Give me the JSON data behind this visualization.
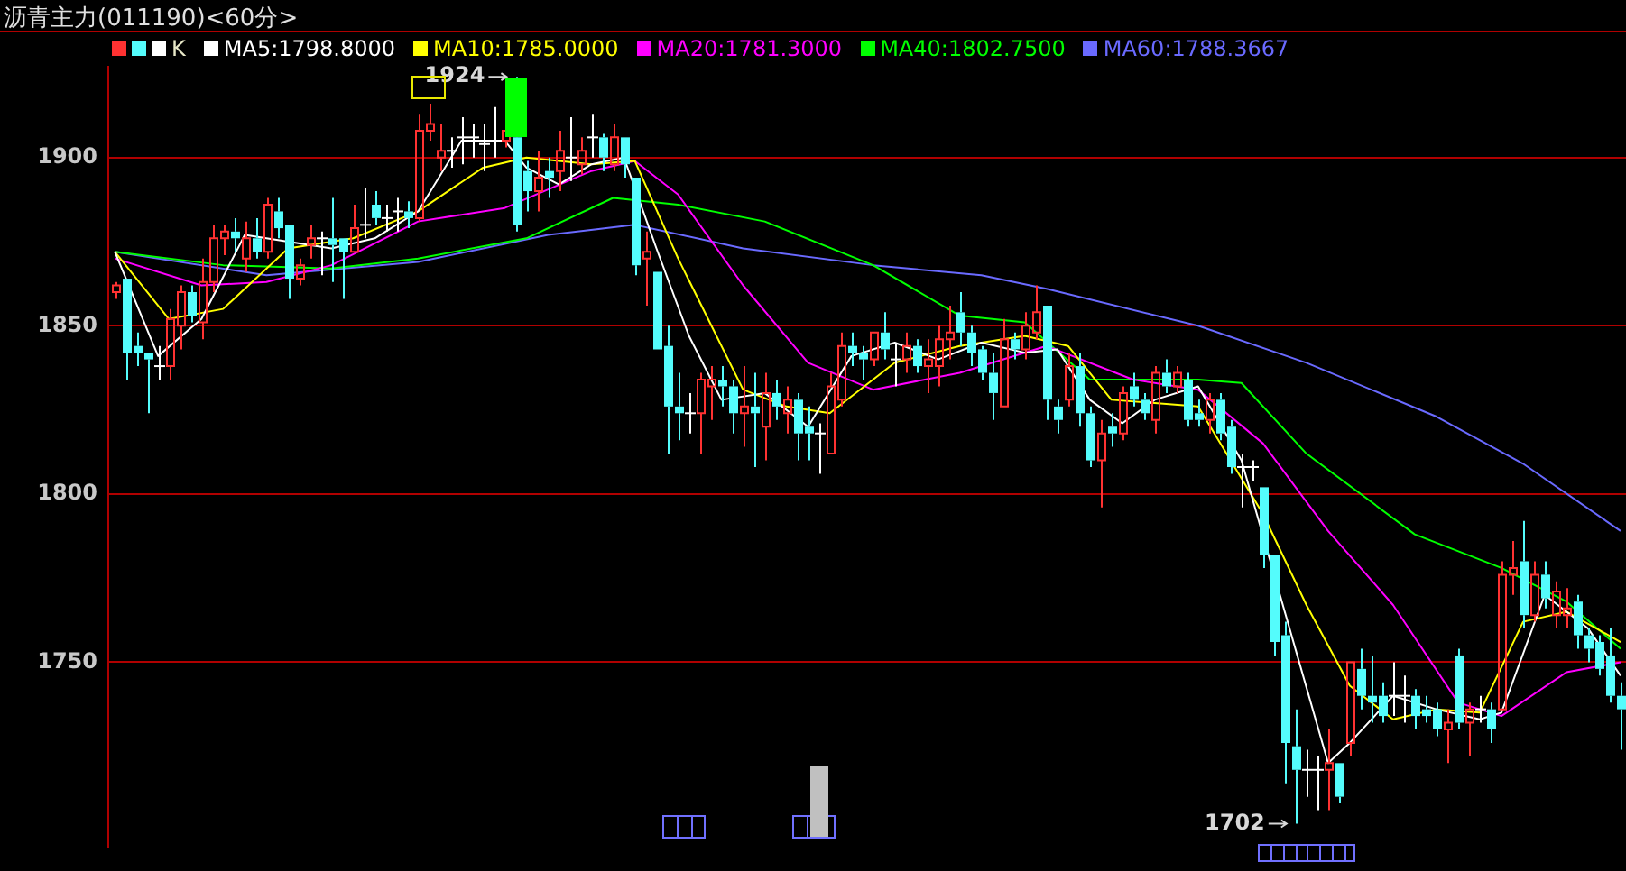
{
  "chart_data": {
    "type": "candlestick",
    "title": "沥青主力(011190)<60分>",
    "categories": [
      null,
      null,
      null,
      null,
      null,
      null,
      null,
      null,
      null,
      null,
      null,
      null,
      null,
      null,
      null,
      null,
      null,
      null,
      null,
      null,
      null,
      null,
      null,
      null,
      null,
      null,
      null,
      null,
      null,
      null,
      null,
      null,
      null,
      null,
      null,
      null,
      null,
      null,
      null,
      null,
      null,
      null,
      null,
      null,
      null,
      null,
      null,
      null,
      null,
      null,
      null,
      null,
      null,
      null,
      null,
      null,
      null,
      null,
      null,
      null,
      null,
      null,
      null,
      null,
      null,
      null,
      null,
      null,
      null,
      null,
      null,
      null,
      null,
      null,
      null,
      null,
      null,
      null,
      null,
      null,
      null,
      null,
      null,
      null,
      null,
      null,
      null,
      null,
      null,
      null,
      null,
      null,
      null,
      null,
      null,
      null,
      null,
      null,
      null,
      null,
      null,
      null,
      null,
      null,
      null,
      null,
      null,
      null,
      null,
      null,
      null,
      null,
      null,
      null,
      null,
      null,
      null,
      null,
      null,
      null,
      null,
      null,
      null,
      null,
      null,
      null,
      null,
      null,
      null,
      null,
      null,
      null,
      null,
      null,
      null,
      null,
      null,
      null,
      null,
      null
    ],
    "series": [
      {
        "name": "K",
        "color": "#e8e8c8",
        "ohlc": [
          [
            1860,
            1863,
            1858,
            1862
          ],
          [
            1864,
            1864,
            1834,
            1842
          ],
          [
            1844,
            1848,
            1838,
            1842
          ],
          [
            1842,
            1842,
            1824,
            1840
          ],
          [
            1838,
            1844,
            1834,
            1838
          ],
          [
            1838,
            1855,
            1834,
            1852
          ],
          [
            1850,
            1862,
            1843,
            1860
          ],
          [
            1860,
            1862,
            1851,
            1853
          ],
          [
            1851,
            1870,
            1846,
            1863
          ],
          [
            1863,
            1880,
            1860,
            1876
          ],
          [
            1876,
            1880,
            1871,
            1878
          ],
          [
            1878,
            1882,
            1872,
            1876
          ],
          [
            1870,
            1881,
            1866,
            1876
          ],
          [
            1876,
            1882,
            1870,
            1872
          ],
          [
            1872,
            1888,
            1870,
            1886
          ],
          [
            1884,
            1888,
            1876,
            1879
          ],
          [
            1880,
            1880,
            1858,
            1864
          ],
          [
            1864,
            1870,
            1862,
            1868
          ],
          [
            1874,
            1880,
            1870,
            1876
          ],
          [
            1876,
            1878,
            1865,
            1876
          ],
          [
            1876,
            1888,
            1863,
            1874
          ],
          [
            1876,
            1876,
            1858,
            1872
          ],
          [
            1872,
            1886,
            1872,
            1879
          ],
          [
            1880,
            1891,
            1876,
            1880
          ],
          [
            1886,
            1890,
            1880,
            1882
          ],
          [
            1882,
            1886,
            1878,
            1882
          ],
          [
            1884,
            1888,
            1878,
            1884
          ],
          [
            1884,
            1887,
            1879,
            1882
          ],
          [
            1882,
            1913,
            1881,
            1908
          ],
          [
            1908,
            1916,
            1905,
            1910
          ],
          [
            1900,
            1910,
            1896,
            1902
          ],
          [
            1902,
            1906,
            1897,
            1902
          ],
          [
            1906,
            1912,
            1898,
            1906
          ],
          [
            1906,
            1910,
            1900,
            1906
          ],
          [
            1904,
            1910,
            1896,
            1904
          ],
          [
            1905,
            1915,
            1900,
            1905
          ],
          [
            1905,
            1910,
            1903,
            1908
          ],
          [
            1906,
            1924,
            1878,
            1880
          ],
          [
            1896,
            1899,
            1884,
            1890
          ],
          [
            1890,
            1902,
            1884,
            1894
          ],
          [
            1896,
            1900,
            1888,
            1894
          ],
          [
            1896,
            1908,
            1890,
            1902
          ],
          [
            1900,
            1912,
            1893,
            1900
          ],
          [
            1898,
            1906,
            1895,
            1902
          ],
          [
            1906,
            1913,
            1900,
            1906
          ],
          [
            1906,
            1907,
            1896,
            1900
          ],
          [
            1898,
            1910,
            1896,
            1906
          ],
          [
            1906,
            1906,
            1894,
            1898
          ],
          [
            1894,
            1894,
            1865,
            1868
          ],
          [
            1870,
            1878,
            1856,
            1872
          ],
          [
            1866,
            1866,
            1843,
            1843
          ],
          [
            1844,
            1850,
            1812,
            1826
          ],
          [
            1826,
            1836,
            1816,
            1824
          ],
          [
            1824,
            1830,
            1818,
            1824
          ],
          [
            1824,
            1836,
            1812,
            1834
          ],
          [
            1832,
            1838,
            1822,
            1834
          ],
          [
            1834,
            1838,
            1826,
            1832
          ],
          [
            1832,
            1834,
            1818,
            1824
          ],
          [
            1824,
            1838,
            1814,
            1826
          ],
          [
            1826,
            1836,
            1808,
            1824
          ],
          [
            1820,
            1836,
            1810,
            1830
          ],
          [
            1830,
            1834,
            1822,
            1826
          ],
          [
            1824,
            1832,
            1818,
            1828
          ],
          [
            1828,
            1830,
            1810,
            1818
          ],
          [
            1820,
            1826,
            1810,
            1818
          ],
          [
            1818,
            1821,
            1806,
            1818
          ],
          [
            1812,
            1836,
            1812,
            1832
          ],
          [
            1828,
            1848,
            1826,
            1844
          ],
          [
            1844,
            1848,
            1838,
            1842
          ],
          [
            1842,
            1844,
            1834,
            1840
          ],
          [
            1840,
            1848,
            1838,
            1848
          ],
          [
            1848,
            1854,
            1840,
            1843
          ],
          [
            1840,
            1845,
            1832,
            1840
          ],
          [
            1840,
            1848,
            1836,
            1844
          ],
          [
            1844,
            1846,
            1836,
            1838
          ],
          [
            1838,
            1846,
            1830,
            1840
          ],
          [
            1838,
            1850,
            1832,
            1846
          ],
          [
            1846,
            1856,
            1840,
            1848
          ],
          [
            1854,
            1860,
            1844,
            1848
          ],
          [
            1848,
            1850,
            1838,
            1842
          ],
          [
            1843,
            1844,
            1834,
            1836
          ],
          [
            1836,
            1842,
            1822,
            1830
          ],
          [
            1826,
            1852,
            1826,
            1846
          ],
          [
            1846,
            1848,
            1840,
            1843
          ],
          [
            1843,
            1854,
            1840,
            1850
          ],
          [
            1848,
            1862,
            1846,
            1854
          ],
          [
            1856,
            1856,
            1822,
            1828
          ],
          [
            1826,
            1828,
            1818,
            1822
          ],
          [
            1828,
            1842,
            1826,
            1838
          ],
          [
            1838,
            1842,
            1820,
            1824
          ],
          [
            1824,
            1826,
            1808,
            1810
          ],
          [
            1810,
            1822,
            1796,
            1818
          ],
          [
            1820,
            1824,
            1814,
            1818
          ],
          [
            1818,
            1832,
            1816,
            1830
          ],
          [
            1832,
            1836,
            1826,
            1828
          ],
          [
            1828,
            1830,
            1822,
            1824
          ],
          [
            1822,
            1838,
            1818,
            1836
          ],
          [
            1836,
            1840,
            1830,
            1832
          ],
          [
            1832,
            1838,
            1830,
            1836
          ],
          [
            1834,
            1836,
            1820,
            1822
          ],
          [
            1824,
            1828,
            1820,
            1822
          ],
          [
            1822,
            1830,
            1818,
            1828
          ],
          [
            1828,
            1830,
            1816,
            1818
          ],
          [
            1820,
            1822,
            1806,
            1808
          ],
          [
            1808,
            1812,
            1796,
            1808
          ],
          [
            1808,
            1810,
            1804,
            1808
          ],
          [
            1802,
            1802,
            1778,
            1782
          ],
          [
            1782,
            1782,
            1752,
            1756
          ],
          [
            1758,
            1762,
            1714,
            1726
          ],
          [
            1725,
            1736,
            1702,
            1718
          ],
          [
            1718,
            1724,
            1710,
            1718
          ],
          [
            1718,
            1722,
            1706,
            1718
          ],
          [
            1718,
            1730,
            1706,
            1720
          ],
          [
            1720,
            1720,
            1708,
            1710
          ],
          [
            1726,
            1750,
            1722,
            1750
          ],
          [
            1748,
            1754,
            1736,
            1740
          ],
          [
            1740,
            1752,
            1732,
            1738
          ],
          [
            1740,
            1744,
            1732,
            1734
          ],
          [
            1740,
            1750,
            1734,
            1740
          ],
          [
            1740,
            1746,
            1732,
            1740
          ],
          [
            1740,
            1742,
            1730,
            1734
          ],
          [
            1736,
            1740,
            1732,
            1734
          ],
          [
            1736,
            1738,
            1728,
            1730
          ],
          [
            1730,
            1736,
            1720,
            1732
          ],
          [
            1752,
            1754,
            1730,
            1732
          ],
          [
            1732,
            1738,
            1722,
            1736
          ],
          [
            1736,
            1740,
            1732,
            1736
          ],
          [
            1736,
            1738,
            1726,
            1730
          ],
          [
            1736,
            1780,
            1736,
            1776
          ],
          [
            1776,
            1786,
            1770,
            1778
          ],
          [
            1780,
            1792,
            1760,
            1764
          ],
          [
            1764,
            1780,
            1762,
            1776
          ],
          [
            1776,
            1780,
            1766,
            1769
          ],
          [
            1764,
            1774,
            1760,
            1771
          ],
          [
            1764,
            1772,
            1760,
            1766
          ],
          [
            1768,
            1770,
            1754,
            1758
          ],
          [
            1758,
            1760,
            1750,
            1754
          ],
          [
            1756,
            1758,
            1746,
            1748
          ],
          [
            1752,
            1760,
            1738,
            1740
          ],
          [
            1740,
            1744,
            1724,
            1736
          ]
        ],
        "colors": [
          "#ff3232",
          "#54fcfc",
          "#54fcfc",
          "#54fcfc",
          "#ffffff",
          "#ff3232",
          "#ff3232",
          "#54fcfc",
          "#ff3232",
          "#ff3232",
          "#ff3232",
          "#54fcfc",
          "#ff3232",
          "#54fcfc",
          "#ff3232",
          "#54fcfc",
          "#54fcfc",
          "#ff3232",
          "#ff3232",
          "#ffffff",
          "#54fcfc",
          "#54fcfc",
          "#ff3232",
          "#ffffff",
          "#54fcfc",
          "#ffffff",
          "#ffffff",
          "#54fcfc",
          "#ff3232",
          "#ff3232",
          "#ff3232",
          "#ffffff",
          "#ffffff",
          "#ffffff",
          "#ffffff",
          "#ffffff",
          "#ff3232",
          "#54fcfc",
          "#54fcfc",
          "#ff3232",
          "#54fcfc",
          "#ff3232",
          "#ffffff",
          "#ff3232",
          "#ffffff",
          "#54fcfc",
          "#ff3232",
          "#54fcfc",
          "#54fcfc",
          "#ff3232",
          "#54fcfc",
          "#54fcfc",
          "#54fcfc",
          "#ffffff",
          "#ff3232",
          "#ff3232",
          "#54fcfc",
          "#54fcfc",
          "#ff3232",
          "#54fcfc",
          "#ff3232",
          "#54fcfc",
          "#ff3232",
          "#54fcfc",
          "#54fcfc",
          "#ffffff",
          "#ff3232",
          "#ff3232",
          "#54fcfc",
          "#54fcfc",
          "#ff3232",
          "#54fcfc",
          "#ffffff",
          "#ff3232",
          "#54fcfc",
          "#ff3232",
          "#ff3232",
          "#ff3232",
          "#54fcfc",
          "#54fcfc",
          "#54fcfc",
          "#54fcfc",
          "#ff3232",
          "#54fcfc",
          "#ff3232",
          "#ff3232",
          "#54fcfc",
          "#54fcfc",
          "#ff3232",
          "#54fcfc",
          "#54fcfc",
          "#ff3232",
          "#54fcfc",
          "#ff3232",
          "#54fcfc",
          "#54fcfc",
          "#ff3232",
          "#54fcfc",
          "#ff3232",
          "#54fcfc",
          "#54fcfc",
          "#ff3232",
          "#54fcfc",
          "#54fcfc",
          "#ffffff",
          "#ffffff",
          "#54fcfc",
          "#54fcfc",
          "#54fcfc",
          "#54fcfc",
          "#ffffff",
          "#ffffff",
          "#ff3232",
          "#54fcfc",
          "#ff3232",
          "#54fcfc",
          "#54fcfc",
          "#54fcfc",
          "#ffffff",
          "#ffffff",
          "#54fcfc",
          "#54fcfc",
          "#54fcfc",
          "#ff3232",
          "#54fcfc",
          "#ff3232",
          "#ffffff",
          "#54fcfc",
          "#ff3232",
          "#ff3232",
          "#54fcfc",
          "#ff3232",
          "#54fcfc",
          "#ff3232",
          "#ff3232",
          "#54fcfc",
          "#54fcfc",
          "#54fcfc",
          "#54fcfc",
          "#54fcfc"
        ]
      },
      {
        "type": "line",
        "name": "MA5:1798.8000",
        "color": "#ffffff",
        "values": [
          1872,
          null,
          null,
          null,
          1841,
          null,
          null,
          null,
          1852,
          null,
          null,
          null,
          1877,
          null,
          null,
          null,
          1875,
          null,
          null,
          null,
          1873,
          null,
          null,
          null,
          1876,
          null,
          null,
          null,
          1884,
          null,
          null,
          null,
          1905,
          null,
          null,
          null,
          1905,
          null,
          1897,
          null,
          null,
          1892,
          null,
          null,
          1898,
          null,
          null,
          1900,
          null,
          null,
          1873,
          null,
          null,
          1847,
          null,
          null,
          1828,
          null,
          null,
          null,
          1830,
          null,
          null,
          null,
          1820,
          null,
          null,
          null,
          1841,
          null,
          null,
          null,
          1845,
          null,
          null,
          null,
          1840,
          null,
          null,
          null,
          1845,
          null,
          null,
          null,
          1842,
          null,
          null,
          1843,
          null,
          null,
          1828,
          null,
          null,
          1821,
          null,
          null,
          1828,
          null,
          null,
          null,
          1832,
          null,
          null,
          null,
          1810,
          null,
          null,
          null,
          1765,
          null,
          null,
          null,
          1720,
          null,
          1726,
          null,
          null,
          null,
          1740,
          null,
          null,
          null,
          1736,
          null,
          null,
          null,
          1733,
          null,
          1735,
          null,
          null,
          null,
          1770,
          null,
          null,
          null,
          1760,
          null,
          null,
          1746
        ]
      },
      {
        "type": "line",
        "name": "MA10:1785.0000",
        "color": "#ffff00",
        "values": [
          1872,
          null,
          null,
          null,
          null,
          1852,
          null,
          null,
          null,
          null,
          1855,
          null,
          null,
          null,
          null,
          null,
          1873,
          null,
          null,
          null,
          null,
          null,
          1876,
          null,
          null,
          null,
          null,
          null,
          1884,
          null,
          null,
          null,
          null,
          null,
          1897,
          null,
          null,
          null,
          1900,
          null,
          null,
          null,
          null,
          null,
          1898,
          null,
          null,
          null,
          1899,
          null,
          null,
          null,
          1870,
          null,
          null,
          null,
          null,
          null,
          1831,
          null,
          null,
          null,
          1826,
          null,
          null,
          null,
          1824,
          null,
          null,
          null,
          null,
          null,
          1839,
          null,
          null,
          null,
          null,
          null,
          1844,
          null,
          null,
          null,
          null,
          null,
          1847,
          null,
          null,
          null,
          1844,
          null,
          null,
          null,
          1828,
          null,
          null,
          null,
          null,
          null,
          null,
          null,
          1826,
          null,
          null,
          null,
          null,
          null,
          1794,
          null,
          null,
          null,
          1767,
          null,
          null,
          null,
          1743,
          null,
          null,
          null,
          1733,
          null,
          null,
          null,
          1736,
          null,
          null,
          null,
          1735,
          null,
          null,
          null,
          1762,
          null,
          null,
          null,
          1765,
          null,
          null,
          null,
          null,
          1756
        ]
      },
      {
        "type": "line",
        "name": "MA20:1781.3000",
        "color": "#ff00ff",
        "values": [
          1870,
          null,
          null,
          null,
          null,
          null,
          null,
          null,
          1862,
          null,
          null,
          null,
          null,
          null,
          1863,
          null,
          null,
          null,
          null,
          null,
          1868,
          null,
          null,
          null,
          null,
          null,
          null,
          null,
          1881,
          null,
          null,
          null,
          null,
          null,
          null,
          null,
          1885,
          null,
          null,
          null,
          null,
          null,
          null,
          null,
          1896,
          null,
          null,
          null,
          1899,
          null,
          null,
          null,
          1889,
          null,
          null,
          null,
          null,
          null,
          1862,
          null,
          null,
          null,
          null,
          null,
          1839,
          null,
          null,
          null,
          null,
          null,
          1831,
          null,
          null,
          null,
          null,
          null,
          null,
          null,
          1836,
          null,
          null,
          null,
          null,
          null,
          null,
          null,
          1844,
          null,
          null,
          null,
          null,
          null,
          null,
          null,
          1834,
          null,
          null,
          null,
          null,
          null,
          1831,
          null,
          null,
          null,
          null,
          null,
          1815,
          null,
          null,
          null,
          null,
          null,
          1789,
          null,
          null,
          null,
          null,
          null,
          1767,
          null,
          null,
          null,
          null,
          null,
          1738,
          null,
          null,
          null,
          1734,
          null,
          null,
          null,
          null,
          null,
          1747,
          null,
          null,
          null,
          null,
          1750
        ]
      },
      {
        "type": "line",
        "name": "MA40:1802.7500",
        "color": "#00ff00",
        "values": [
          1872,
          null,
          null,
          null,
          null,
          null,
          null,
          null,
          null,
          null,
          1868,
          null,
          null,
          null,
          null,
          null,
          null,
          null,
          null,
          null,
          1867,
          null,
          null,
          null,
          null,
          null,
          null,
          null,
          1870,
          null,
          null,
          null,
          null,
          null,
          null,
          null,
          null,
          null,
          1876,
          null,
          null,
          null,
          null,
          null,
          null,
          null,
          1888,
          null,
          null,
          null,
          null,
          null,
          1886,
          null,
          null,
          null,
          null,
          null,
          null,
          null,
          1881,
          null,
          null,
          null,
          null,
          null,
          null,
          null,
          null,
          null,
          1868,
          null,
          null,
          null,
          null,
          null,
          null,
          null,
          1853,
          null,
          null,
          null,
          null,
          null,
          1851,
          null,
          null,
          null,
          null,
          null,
          1834,
          null,
          null,
          null,
          null,
          null,
          null,
          null,
          null,
          null,
          1834,
          null,
          null,
          null,
          1833,
          null,
          null,
          null,
          null,
          null,
          1812,
          null,
          null,
          null,
          null,
          null,
          null,
          null,
          null,
          null,
          1788,
          null,
          null,
          null,
          null,
          null,
          null,
          null,
          1778,
          null,
          null,
          null,
          null,
          null,
          1768,
          null,
          null,
          null,
          null,
          1754
        ]
      },
      {
        "type": "line",
        "name": "MA60:1788.3667",
        "color": "#6a6aff",
        "values": [
          1872,
          null,
          null,
          null,
          null,
          null,
          null,
          null,
          null,
          null,
          null,
          null,
          null,
          null,
          1865,
          null,
          null,
          null,
          null,
          null,
          null,
          null,
          null,
          null,
          null,
          null,
          null,
          null,
          1869,
          null,
          null,
          null,
          null,
          null,
          null,
          null,
          null,
          null,
          null,
          null,
          1877,
          null,
          null,
          null,
          null,
          null,
          null,
          null,
          1880,
          null,
          null,
          null,
          null,
          null,
          null,
          null,
          null,
          null,
          1873,
          null,
          null,
          null,
          null,
          null,
          null,
          null,
          null,
          null,
          null,
          null,
          1868,
          null,
          null,
          null,
          null,
          null,
          null,
          null,
          null,
          null,
          1865,
          null,
          null,
          null,
          null,
          null,
          1861,
          null,
          null,
          null,
          null,
          null,
          null,
          null,
          null,
          null,
          null,
          null,
          null,
          null,
          1850,
          null,
          null,
          null,
          null,
          null,
          null,
          null,
          null,
          null,
          1839,
          null,
          null,
          null,
          null,
          null,
          null,
          null,
          null,
          null,
          null,
          null,
          1823,
          null,
          null,
          null,
          null,
          null,
          null,
          null,
          1809,
          null,
          null,
          null,
          null,
          null,
          null,
          null,
          null,
          1789
        ]
      }
    ],
    "ylim": [
      1695,
      1927
    ],
    "yticks": [
      1750,
      1800,
      1850,
      1900
    ],
    "grid": "y",
    "legend": "top left",
    "tick_labels": "y",
    "marker": "none",
    "line_style": "solid",
    "annotations": [
      "1924",
      "1702"
    ]
  }
}
